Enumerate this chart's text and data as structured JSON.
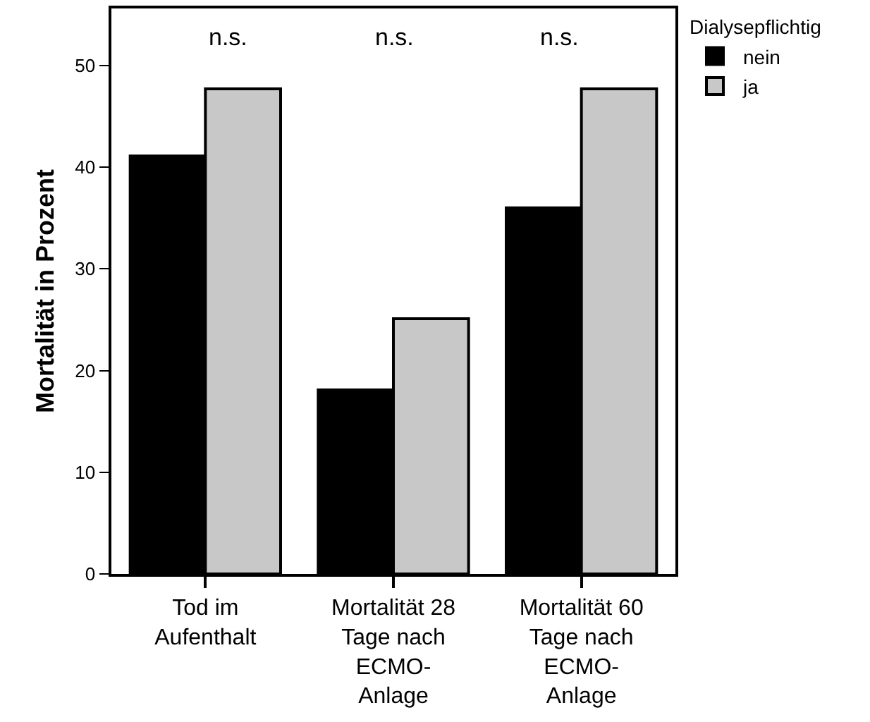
{
  "chart_data": {
    "type": "bar",
    "ylabel": "Mortalität in Prozent",
    "legend_title": "Dialysepflichtig",
    "categories": [
      "Tod im Aufenthalt",
      "Mortalität 28 Tage nach ECMO-Anlage",
      "Mortalität 60 Tage nach ECMO-Anlage"
    ],
    "series": [
      {
        "name": "nein",
        "color": "#000000",
        "values": [
          41.1,
          18.1,
          36.0
        ]
      },
      {
        "name": "ja",
        "color": "#c8c8c8",
        "values": [
          47.7,
          25.1,
          47.7
        ]
      }
    ],
    "ylim": [
      0,
      55.6
    ],
    "yticks": [
      0,
      10,
      20,
      30,
      40,
      50
    ],
    "grid": false,
    "legend": "top right",
    "annotations": [
      "n.s.",
      "n.s.",
      "n.s."
    ]
  }
}
